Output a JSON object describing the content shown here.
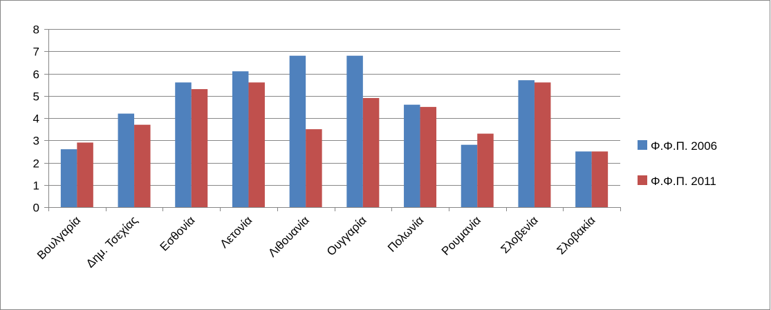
{
  "chart_data": {
    "type": "bar",
    "title": "",
    "xlabel": "",
    "ylabel": "",
    "categories": [
      "Βουλγαρία",
      "Δημ. Τσεχίας",
      "Εσθονία",
      "Λετονία",
      "Λιθουανία",
      "Ουγγαρία",
      "Πολωνία",
      "Ρουμανία",
      "Σλοβενία",
      "Σλοβακία"
    ],
    "series": [
      {
        "name": "Φ.Φ.Π. 2006",
        "color": "#4F81BD",
        "values": [
          2.6,
          4.2,
          5.6,
          6.1,
          6.8,
          6.8,
          4.6,
          2.8,
          5.7,
          2.5
        ]
      },
      {
        "name": "Φ.Φ.Π. 2011",
        "color": "#C0504D",
        "values": [
          2.9,
          3.7,
          5.3,
          5.6,
          3.5,
          4.9,
          4.5,
          3.3,
          5.6,
          2.5
        ]
      }
    ],
    "ylim": [
      0,
      8
    ],
    "yticks": [
      0,
      1,
      2,
      3,
      4,
      5,
      6,
      7,
      8
    ],
    "grid": true,
    "legend_position": "right"
  }
}
